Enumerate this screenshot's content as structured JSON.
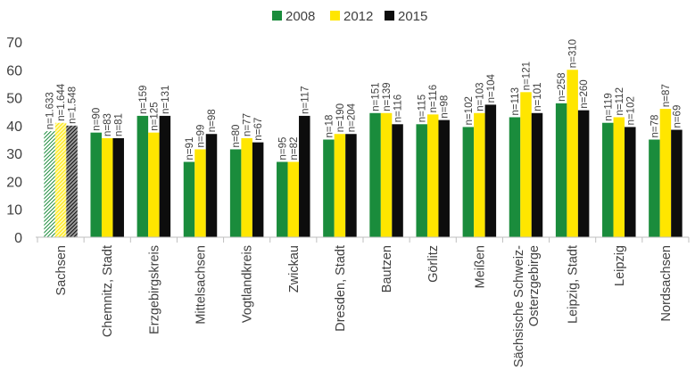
{
  "chart_data": {
    "type": "bar",
    "title": "",
    "xlabel": "",
    "ylabel": "",
    "ylim": [
      0,
      70
    ],
    "yticks": [
      0,
      10,
      20,
      30,
      40,
      50,
      60,
      70
    ],
    "grid": false,
    "legend_position": "top-center",
    "categories": [
      "Sachsen",
      "Chemnitz, Stadt",
      "Erzgebirgskreis",
      "Mittelsachsen",
      "Vogtlandkreis",
      "Zwickau",
      "Dresden, Stadt",
      "Bautzen",
      "Görlitz",
      "Meißen",
      "Sächsische Schweiz-\nOsterzgebirge",
      "Leipzig, Stadt",
      "Leipzig",
      "Nordsachsen"
    ],
    "series": [
      {
        "name": "2008",
        "color": "#1a8c3c",
        "hatched_first": true,
        "values": [
          38,
          37.5,
          43.5,
          27,
          31.5,
          27,
          35,
          44.5,
          40.5,
          39.5,
          43,
          48,
          41,
          35
        ],
        "n_labels": [
          "n=1.633",
          "n=90",
          "n=159",
          "n=91",
          "n=80",
          "n=95",
          "n=18",
          "n=151",
          "n=115",
          "n=102",
          "n=113",
          "n=258",
          "n=119",
          "n=78"
        ]
      },
      {
        "name": "2012",
        "color": "#ffe600",
        "hatched_first": true,
        "values": [
          41,
          35.5,
          37.5,
          31.5,
          35.5,
          27,
          37,
          44.5,
          44,
          44.5,
          52,
          60,
          43,
          46
        ],
        "n_labels": [
          "n=1.644",
          "n=83",
          "n=125",
          "n=99",
          "n=77",
          "n=82",
          "n=190",
          "n=139",
          "n=116",
          "n=103",
          "n=121",
          "n=310",
          "n=112",
          "n=87"
        ]
      },
      {
        "name": "2015",
        "color": "#0d0d0d",
        "hatched_first": true,
        "values": [
          40,
          35.5,
          43.5,
          37,
          34,
          43.5,
          37,
          40.5,
          42,
          47.5,
          44.5,
          45.5,
          39.5,
          38.5
        ],
        "n_labels": [
          "n=1.548",
          "n=81",
          "n=131",
          "n=98",
          "n=67",
          "n=117",
          "n=204",
          "n=116",
          "n=98",
          "n=104",
          "n=101",
          "n=260",
          "n=102",
          "n=69"
        ]
      }
    ]
  }
}
